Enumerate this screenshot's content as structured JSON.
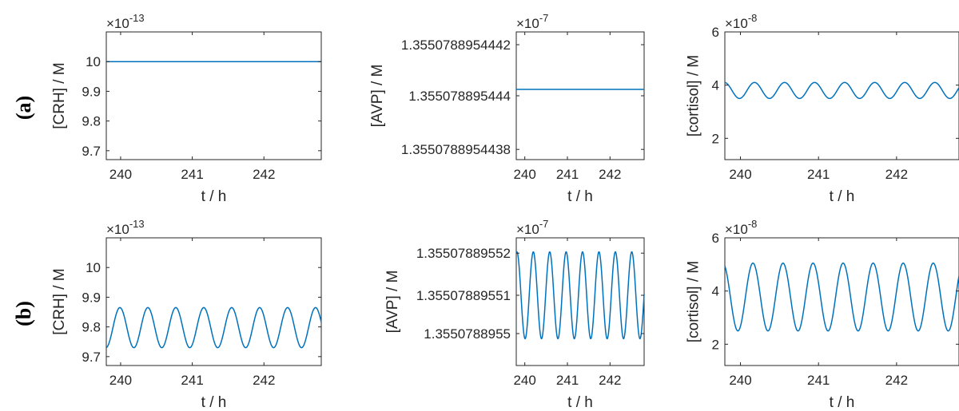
{
  "row_labels": [
    "(a)",
    "(b)"
  ],
  "chart_data": [
    {
      "panel": "a1",
      "type": "line",
      "xlabel": "t / h",
      "ylabel": "[CRH] / M",
      "multiplier_base": "×10",
      "multiplier_exp": "-13",
      "xlim": [
        239.8,
        242.8
      ],
      "xticks": [
        240,
        241,
        242
      ],
      "xtick_labels": [
        "240",
        "241",
        "242"
      ],
      "ylim": [
        9.67,
        10.1
      ],
      "yticks": [
        9.7,
        9.8,
        9.9,
        10
      ],
      "ytick_labels": [
        "9.7",
        "9.8",
        "9.9",
        "10"
      ],
      "series": [
        {
          "kind": "constant",
          "value": 10.0
        }
      ],
      "color": "#0072BD"
    },
    {
      "panel": "a2",
      "type": "line",
      "xlabel": "t / h",
      "ylabel": "[AVP] / M",
      "multiplier_base": "×10",
      "multiplier_exp": "-7",
      "xlim": [
        239.8,
        242.8
      ],
      "xticks": [
        240,
        241,
        242
      ],
      "xtick_labels": [
        "240",
        "241",
        "242"
      ],
      "ylim": [
        0,
        1
      ],
      "yticks": [
        0.08,
        0.5,
        0.9
      ],
      "ytick_labels": [
        "1.3550788954438",
        "1.355078895444",
        "1.3550788954442"
      ],
      "series": [
        {
          "kind": "constant",
          "value": 0.55
        }
      ],
      "color": "#0072BD"
    },
    {
      "panel": "a3",
      "type": "line",
      "xlabel": "t / h",
      "ylabel": "[cortisol] / M",
      "multiplier_base": "×10",
      "multiplier_exp": "-8",
      "xlim": [
        239.8,
        242.8
      ],
      "xticks": [
        240,
        241,
        242
      ],
      "xtick_labels": [
        "240",
        "241",
        "242"
      ],
      "ylim": [
        1.2,
        6
      ],
      "yticks": [
        2,
        4,
        6
      ],
      "ytick_labels": [
        "2",
        "4",
        "6"
      ],
      "series": [
        {
          "kind": "oscillation",
          "min": 3.5,
          "max": 4.1,
          "period": 0.385,
          "peak_t": 240.18
        }
      ],
      "color": "#0072BD"
    },
    {
      "panel": "b1",
      "type": "line",
      "xlabel": "t / h",
      "ylabel": "[CRH] / M",
      "multiplier_base": "×10",
      "multiplier_exp": "-13",
      "xlim": [
        239.8,
        242.8
      ],
      "xticks": [
        240,
        241,
        242
      ],
      "xtick_labels": [
        "240",
        "241",
        "242"
      ],
      "ylim": [
        9.67,
        10.1
      ],
      "yticks": [
        9.7,
        9.8,
        9.9,
        10
      ],
      "ytick_labels": [
        "9.7",
        "9.8",
        "9.9",
        "10"
      ],
      "series": [
        {
          "kind": "oscillation",
          "min": 9.73,
          "max": 9.865,
          "period": 0.39,
          "peak_t": 239.99
        }
      ],
      "color": "#0072BD"
    },
    {
      "panel": "b2",
      "type": "line",
      "xlabel": "t / h",
      "ylabel": "[AVP] / M",
      "multiplier_base": "×10",
      "multiplier_exp": "-7",
      "xlim": [
        239.8,
        242.8
      ],
      "xticks": [
        240,
        241,
        242
      ],
      "xtick_labels": [
        "240",
        "241",
        "242"
      ],
      "ylim": [
        0,
        1
      ],
      "yticks": [
        0.25,
        0.55,
        0.88
      ],
      "ytick_labels": [
        "1.3550788955",
        "1.35507889551",
        "1.35507889552"
      ],
      "series": [
        {
          "kind": "oscillation",
          "min": 0.21,
          "max": 0.89,
          "period": 0.385,
          "peak_t": 240.2
        }
      ],
      "color": "#0072BD"
    },
    {
      "panel": "b3",
      "type": "line",
      "xlabel": "t / h",
      "ylabel": "[cortisol] / M",
      "multiplier_base": "×10",
      "multiplier_exp": "-8",
      "xlim": [
        239.8,
        242.8
      ],
      "xticks": [
        240,
        241,
        242
      ],
      "xtick_labels": [
        "240",
        "241",
        "242"
      ],
      "ylim": [
        1.2,
        6
      ],
      "yticks": [
        2,
        4,
        6
      ],
      "ytick_labels": [
        "2",
        "4",
        "6"
      ],
      "series": [
        {
          "kind": "oscillation",
          "min": 2.5,
          "max": 5.05,
          "period": 0.385,
          "peak_t": 240.16
        }
      ],
      "color": "#0072BD"
    }
  ]
}
